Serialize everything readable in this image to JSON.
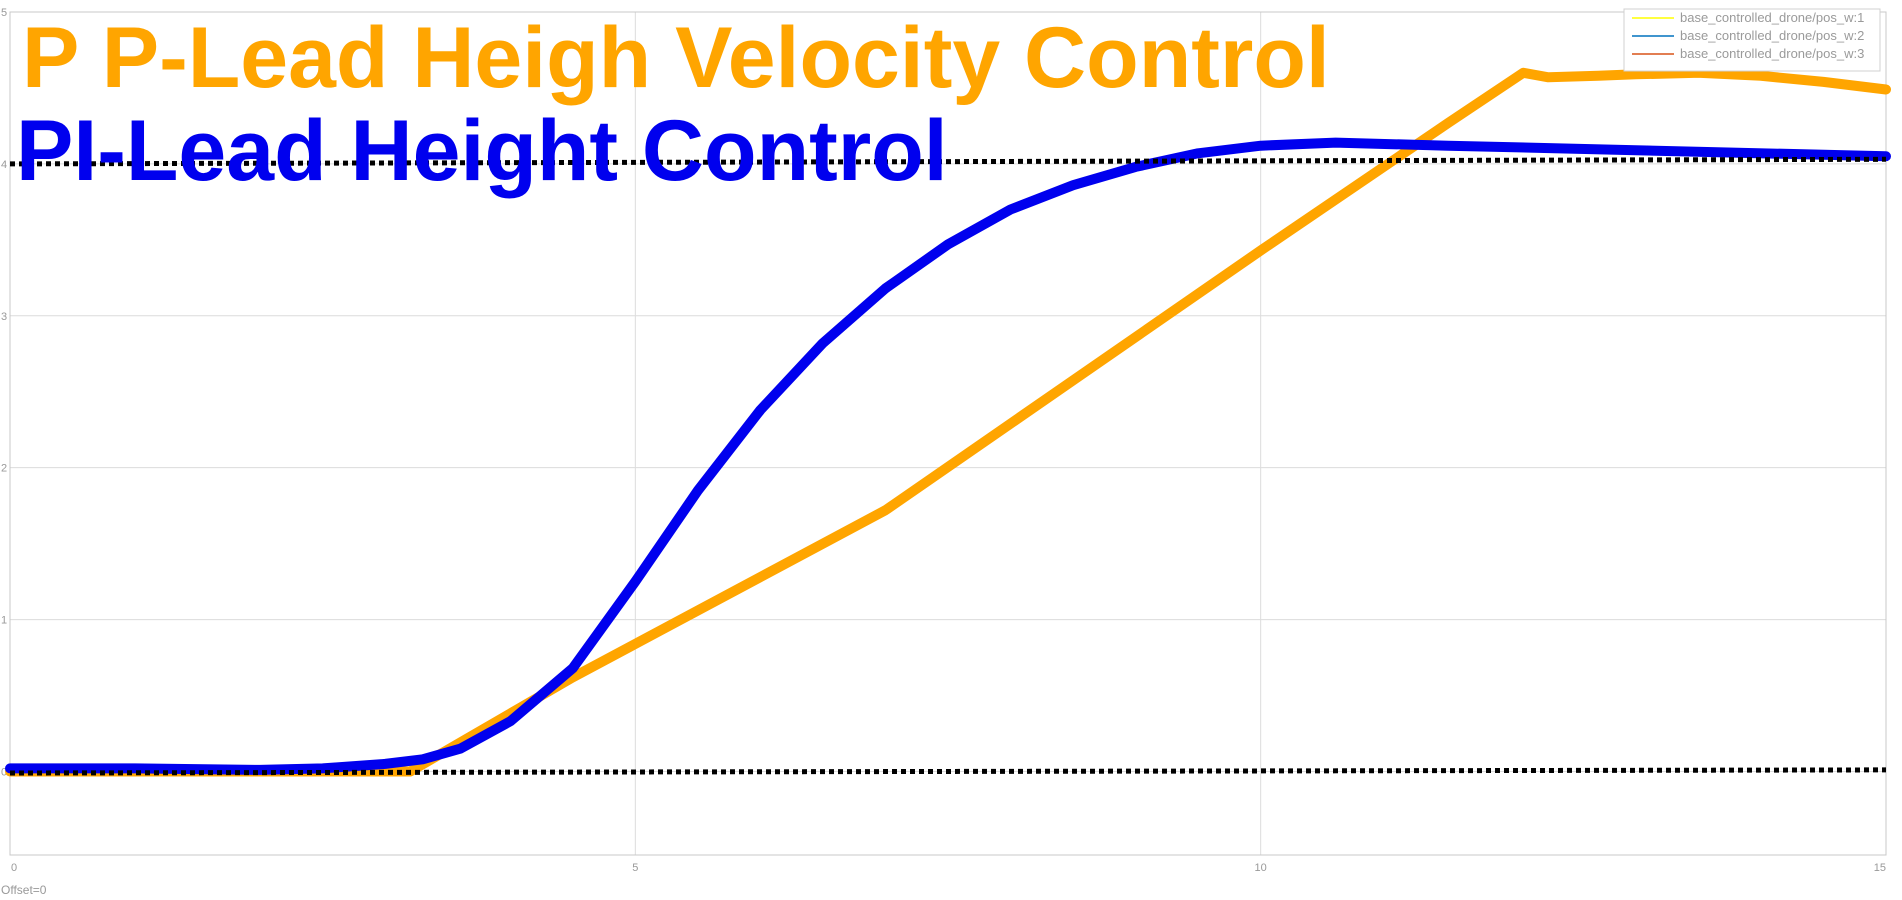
{
  "colors": {
    "background": "#ffffff",
    "grid": "#dcdcdc",
    "axes_frame": "#c8c8c8",
    "tick_text": "#999999",
    "title_orange": "#ffa500",
    "title_blue": "#0000ee",
    "reference_lines": "#000000"
  },
  "offset_label": "Offset=0",
  "chart_data": {
    "type": "line",
    "title_overlays": [
      "P P-Lead Heigh Velocity Control",
      "PI-Lead Height Control"
    ],
    "xlim": [
      0,
      15
    ],
    "ylim": [
      -0.55,
      5
    ],
    "x_ticks": [
      0,
      5,
      10,
      15
    ],
    "y_ticks": [
      0,
      1,
      2,
      3,
      4,
      5
    ],
    "grid": true,
    "legend_position": "top-right",
    "legend": [
      {
        "label": "base_controlled_drone/pos_w:1",
        "color": "#ffff00"
      },
      {
        "label": "base_controlled_drone/pos_w:2",
        "color": "#0072bd"
      },
      {
        "label": "base_controlled_drone/pos_w:3",
        "color": "#d95319"
      }
    ],
    "series": [
      {
        "color": "#ffa500",
        "style": "solid",
        "x": [
          0,
          3.2,
          4.5,
          7,
          10,
          11.5,
          12.1,
          12.3,
          12.7,
          13,
          13.5,
          14,
          14.5,
          15
        ],
        "y": [
          0.0,
          0.0,
          0.62,
          1.72,
          3.43,
          4.27,
          4.6,
          4.57,
          4.58,
          4.59,
          4.6,
          4.58,
          4.54,
          4.49
        ]
      },
      {
        "color": "#0000ee",
        "style": "solid",
        "x": [
          0,
          1,
          2,
          2.5,
          3,
          3.3,
          3.6,
          4.0,
          4.5,
          5,
          5.5,
          6,
          6.5,
          7,
          7.5,
          8,
          8.5,
          9,
          9.5,
          10,
          10.6,
          11.5,
          13,
          15
        ],
        "y": [
          0.02,
          0.02,
          0.01,
          0.02,
          0.05,
          0.08,
          0.15,
          0.33,
          0.68,
          1.25,
          1.85,
          2.38,
          2.82,
          3.18,
          3.47,
          3.7,
          3.86,
          3.98,
          4.07,
          4.12,
          4.14,
          4.12,
          4.09,
          4.05
        ]
      },
      {
        "color": "#000000",
        "style": "dotted",
        "x": [
          0,
          15
        ],
        "y": [
          4.0,
          4.03
        ]
      },
      {
        "color": "#000000",
        "style": "dotted",
        "x": [
          0,
          15
        ],
        "y": [
          -0.01,
          0.01
        ]
      }
    ]
  }
}
